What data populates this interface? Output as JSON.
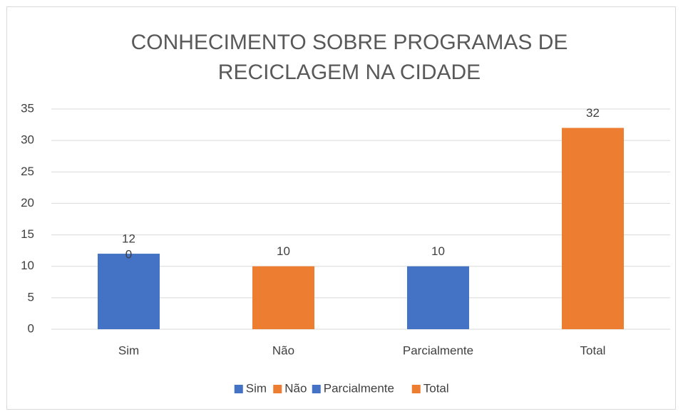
{
  "chart_data": {
    "type": "bar",
    "stacked": true,
    "title": [
      "CONHECIMENTO SOBRE PROGRAMAS DE",
      "RECICLAGEM NA CIDADE"
    ],
    "categories": [
      "Sim",
      "Não",
      "Parcialmente",
      "Total"
    ],
    "series": [
      {
        "name": "Sim",
        "color": "#4472c4",
        "values": [
          12,
          null,
          null,
          null
        ]
      },
      {
        "name": "Não",
        "color": "#ed7d31",
        "values": [
          0,
          10,
          null,
          null
        ]
      },
      {
        "name": "Parcialmente",
        "color": "#4472c4",
        "values": [
          null,
          null,
          10,
          null
        ]
      },
      {
        "name": "Total",
        "color": "#ed7d31",
        "values": [
          null,
          null,
          null,
          32
        ]
      }
    ],
    "ylim": [
      0,
      35
    ],
    "yticks": [
      0,
      5,
      10,
      15,
      20,
      25,
      30,
      35
    ],
    "grid": true,
    "legend": "bottom"
  }
}
